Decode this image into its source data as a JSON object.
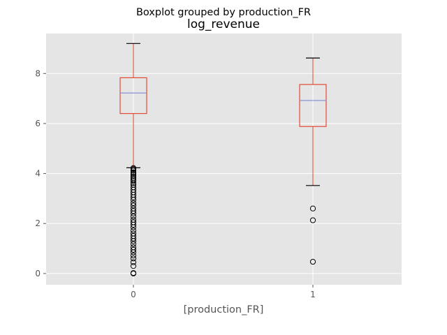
{
  "chart_data": {
    "type": "boxplot",
    "suptitle": "Boxplot grouped by production_FR",
    "title": "log_revenue",
    "xlabel": "[production_FR]",
    "ylabel": "",
    "categories": [
      "0",
      "1"
    ],
    "ylim": [
      -0.45,
      9.6
    ],
    "yticks": [
      0,
      2,
      4,
      6,
      8
    ],
    "grid": true,
    "colors": {
      "background": "#e5e5e5",
      "box": "#e24a33",
      "median": "#8c8fd8",
      "whisker": "#e24a33",
      "cap": "#000000",
      "flier": "#000000",
      "grid": "#ffffff",
      "tick_text": "#555555"
    },
    "boxes": [
      {
        "category": "0",
        "whisker_low": 4.23,
        "q1": 6.4,
        "median": 7.22,
        "q3": 7.83,
        "whisker_high": 9.2,
        "fliers": [
          4.22,
          4.18,
          4.12,
          4.05,
          4.0,
          3.95,
          3.88,
          3.82,
          3.76,
          3.7,
          3.62,
          3.55,
          3.45,
          3.35,
          3.25,
          3.15,
          3.05,
          2.95,
          2.82,
          2.72,
          2.6,
          2.5,
          2.4,
          2.28,
          2.15,
          2.05,
          1.95,
          1.85,
          1.72,
          1.6,
          1.5,
          1.4,
          1.3,
          1.18,
          1.05,
          0.95,
          0.85,
          0.72,
          0.6,
          0.45,
          0.3,
          0.02,
          0.0
        ]
      },
      {
        "category": "1",
        "whisker_low": 3.52,
        "q1": 5.88,
        "median": 6.92,
        "q3": 7.56,
        "whisker_high": 8.62,
        "fliers": [
          2.6,
          2.13,
          0.47
        ]
      }
    ]
  }
}
